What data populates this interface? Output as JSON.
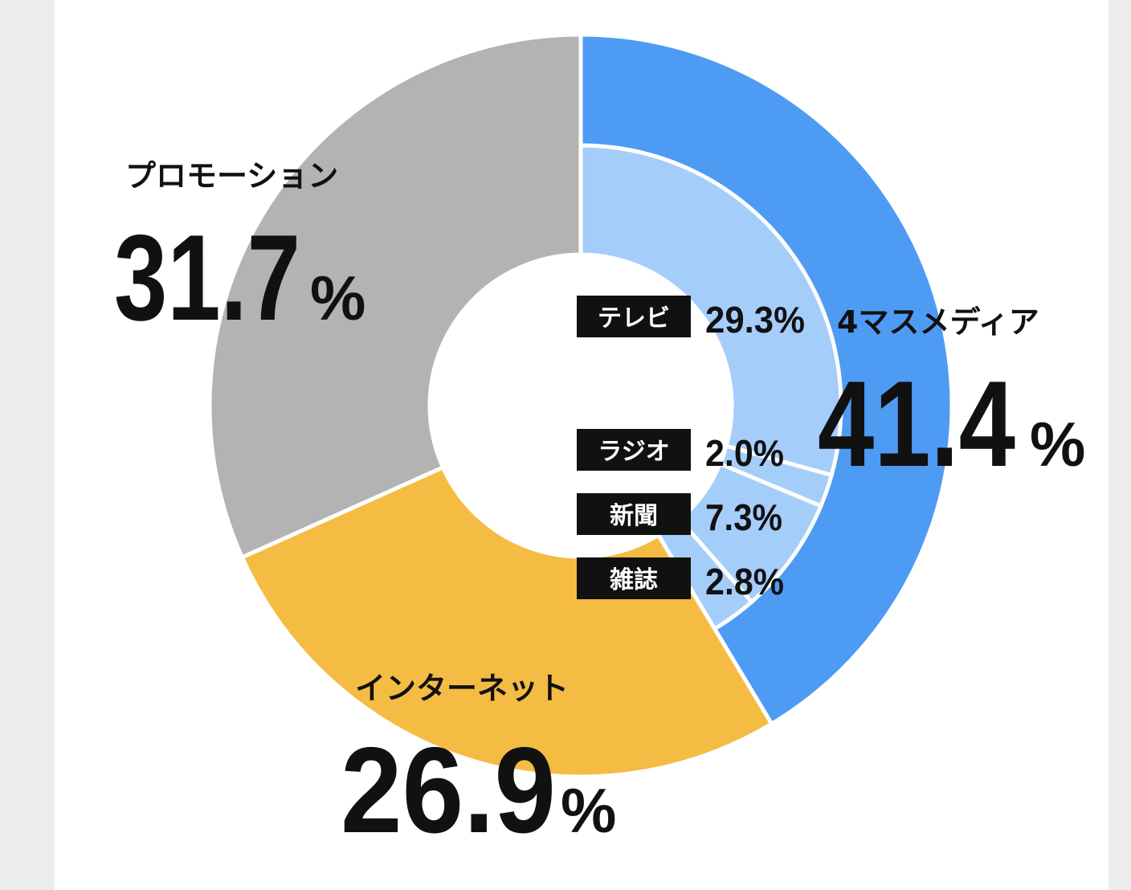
{
  "chart_data": {
    "type": "pie",
    "categories": [
      "4マスメディア",
      "インターネット",
      "プロモーション"
    ],
    "values": [
      41.4,
      26.9,
      31.7
    ],
    "value_labels": [
      "41.4",
      "26.9",
      "31.7"
    ],
    "percent_sign": "%",
    "colors": [
      "#4e9bf4",
      "#f4bc42",
      "#b3b3b3"
    ],
    "subcategories": {
      "parent": "4マスメディア",
      "labels": [
        "テレビ",
        "ラジオ",
        "新聞",
        "雑誌"
      ],
      "values": [
        29.3,
        2.0,
        7.3,
        2.8
      ],
      "value_labels": [
        "29.3%",
        "2.0%",
        "7.3%",
        "2.8%"
      ],
      "color": "#a5cdfa"
    }
  }
}
